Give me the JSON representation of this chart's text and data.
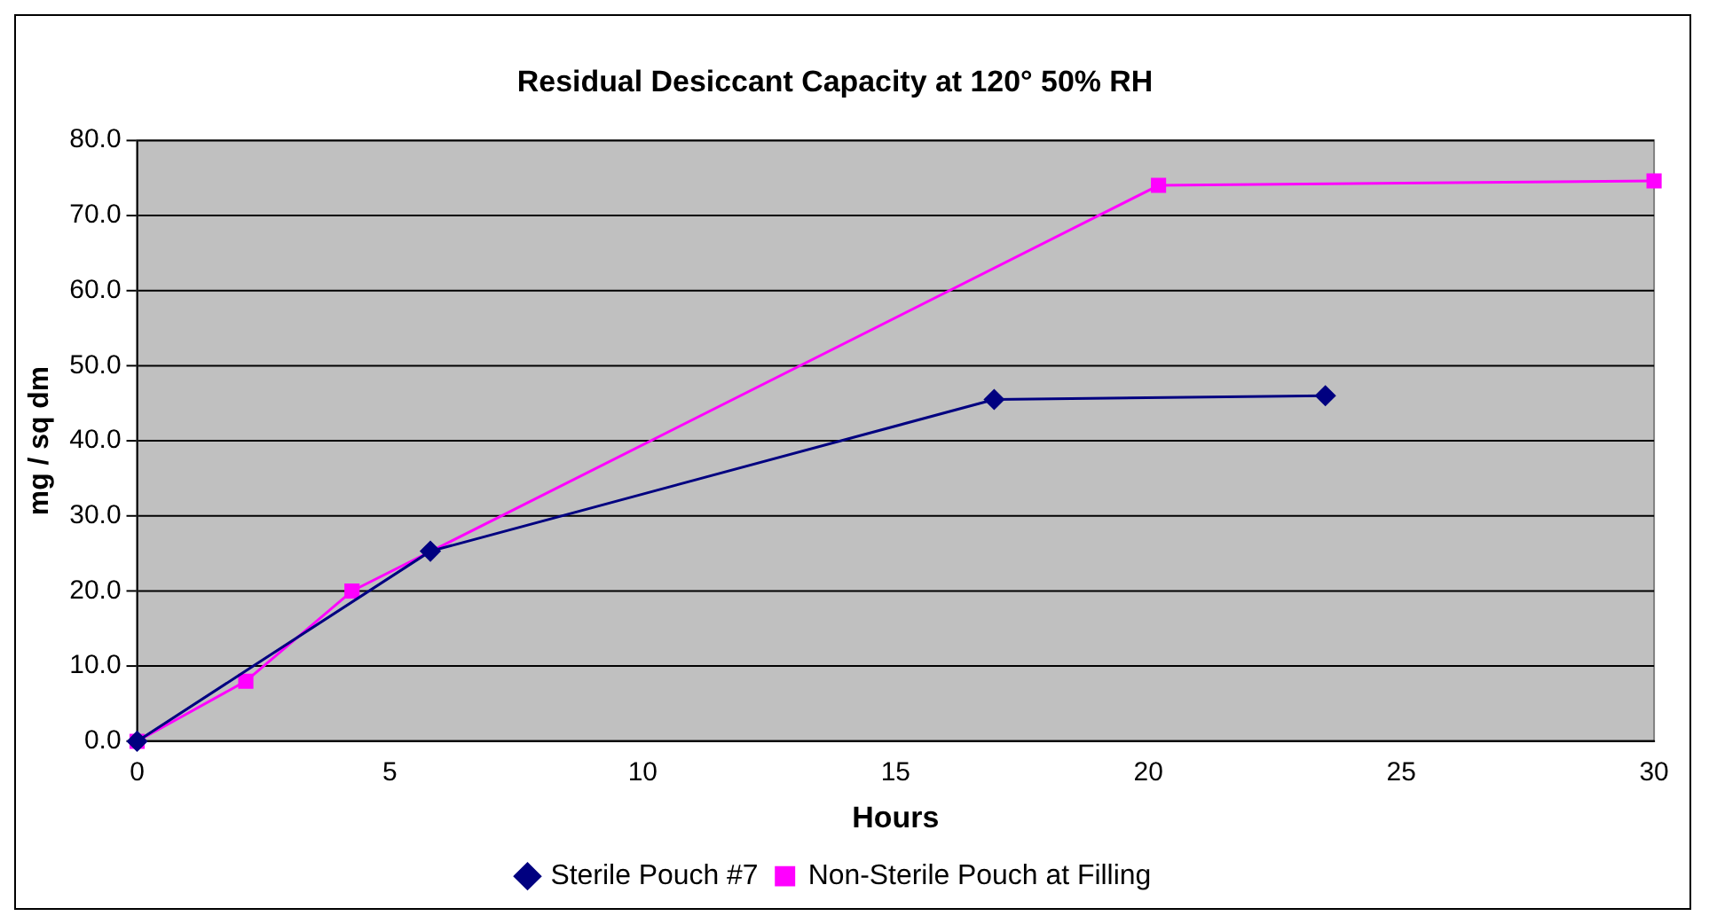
{
  "chart_data": {
    "type": "line",
    "title": "Residual Desiccant Capacity at 120° 50% RH",
    "xlabel": "Hours",
    "ylabel": "mg / sq dm",
    "xlim": [
      0,
      30
    ],
    "xticks": [
      0,
      5,
      10,
      15,
      20,
      25,
      30
    ],
    "ylim": [
      0,
      80
    ],
    "yticks": [
      {
        "value": 0,
        "label": "0.0"
      },
      {
        "value": 10,
        "label": "10.0"
      },
      {
        "value": 20,
        "label": "20.0"
      },
      {
        "value": 30,
        "label": "30.0"
      },
      {
        "value": 40,
        "label": "40.0"
      },
      {
        "value": 50,
        "label": "50.0"
      },
      {
        "value": 60,
        "label": "60.0"
      },
      {
        "value": 70,
        "label": "70.0"
      },
      {
        "value": 80,
        "label": "80.0"
      }
    ],
    "grid": "y",
    "legend": "bottom",
    "line_style": "solid",
    "series": [
      {
        "name": "Sterile Pouch #7",
        "color": "#000080",
        "marker": "diamond",
        "x": [
          0,
          5.8,
          16.95,
          23.5
        ],
        "values": [
          0,
          25.3,
          45.5,
          46
        ]
      },
      {
        "name": "Non-Sterile Pouch at Filling",
        "color": "#ff00ff",
        "marker": "square",
        "x": [
          0,
          2.15,
          4.25,
          20.2,
          30
        ],
        "values": [
          0,
          8,
          20,
          74,
          74.6
        ]
      }
    ]
  }
}
